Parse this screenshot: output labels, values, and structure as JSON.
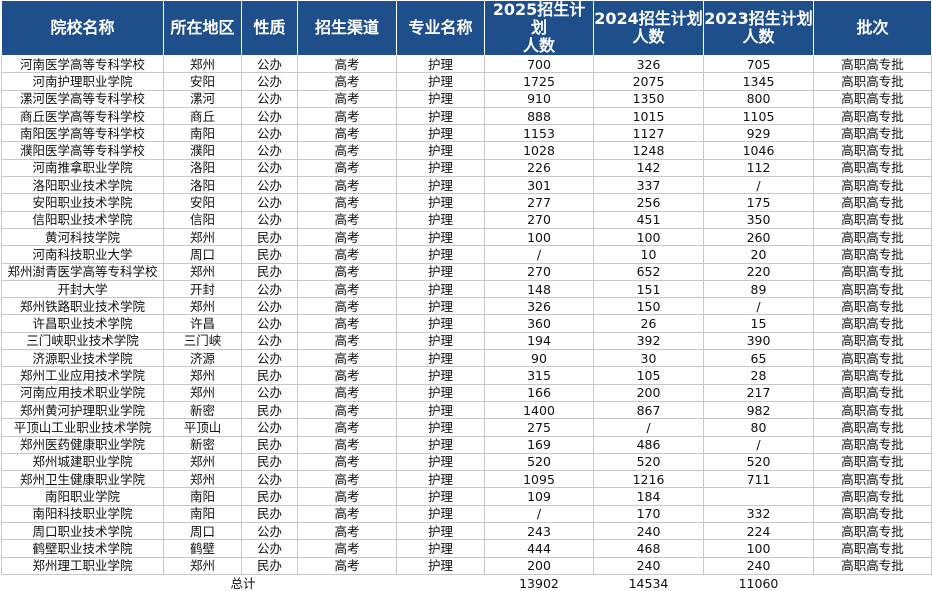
{
  "table": {
    "header": [
      "院校名称",
      "所在地区",
      "性质",
      "招生渠道",
      "专业名称",
      "2025招生计划\n人数",
      "2024招生计划\n人数",
      "2023招生计划\n人数",
      "批次"
    ],
    "rows": [
      [
        "河南医学高等专科学校",
        "郑州",
        "公办",
        "高考",
        "护理",
        700,
        326,
        705,
        "高职高专批"
      ],
      [
        "河南护理职业学院",
        "安阳",
        "公办",
        "高考",
        "护理",
        1725,
        2075,
        1345,
        "高职高专批"
      ],
      [
        "漯河医学高等专科学校",
        "漯河",
        "公办",
        "高考",
        "护理",
        910,
        1350,
        800,
        "高职高专批"
      ],
      [
        "商丘医学高等专科学校",
        "商丘",
        "公办",
        "高考",
        "护理",
        888,
        1015,
        1105,
        "高职高专批"
      ],
      [
        "南阳医学高等专科学校",
        "南阳",
        "公办",
        "高考",
        "护理",
        1153,
        1127,
        929,
        "高职高专批"
      ],
      [
        "濮阳医学高等专科学校",
        "濮阳",
        "公办",
        "高考",
        "护理",
        1028,
        1248,
        1046,
        "高职高专批"
      ],
      [
        "河南推拿职业学院",
        "洛阳",
        "公办",
        "高考",
        "护理",
        226,
        142,
        112,
        "高职高专批"
      ],
      [
        "洛阳职业技术学院",
        "洛阳",
        "公办",
        "高考",
        "护理",
        301,
        337,
        "/",
        "高职高专批"
      ],
      [
        "安阳职业技术学院",
        "安阳",
        "公办",
        "高考",
        "护理",
        277,
        256,
        175,
        "高职高专批"
      ],
      [
        "信阳职业技术学院",
        "信阳",
        "公办",
        "高考",
        "护理",
        270,
        451,
        350,
        "高职高专批"
      ],
      [
        "黄河科技学院",
        "郑州",
        "民办",
        "高考",
        "护理",
        100,
        100,
        260,
        "高职高专批"
      ],
      [
        "河南科技职业大学",
        "周口",
        "民办",
        "高考",
        "护理",
        "/",
        10,
        20,
        "高职高专批"
      ],
      [
        "郑州澍青医学高等专科学校",
        "郑州",
        "民办",
        "高考",
        "护理",
        270,
        652,
        220,
        "高职高专批"
      ],
      [
        "开封大学",
        "开封",
        "公办",
        "高考",
        "护理",
        148,
        151,
        89,
        "高职高专批"
      ],
      [
        "郑州铁路职业技术学院",
        "郑州",
        "公办",
        "高考",
        "护理",
        326,
        150,
        "/",
        "高职高专批"
      ],
      [
        "许昌职业技术学院",
        "许昌",
        "公办",
        "高考",
        "护理",
        360,
        26,
        15,
        "高职高专批"
      ],
      [
        "三门峡职业技术学院",
        "三门峡",
        "公办",
        "高考",
        "护理",
        194,
        392,
        390,
        "高职高专批"
      ],
      [
        "济源职业技术学院",
        "济源",
        "公办",
        "高考",
        "护理",
        90,
        30,
        65,
        "高职高专批"
      ],
      [
        "郑州工业应用技术学院",
        "郑州",
        "民办",
        "高考",
        "护理",
        315,
        105,
        28,
        "高职高专批"
      ],
      [
        "河南应用技术职业学院",
        "郑州",
        "公办",
        "高考",
        "护理",
        166,
        200,
        217,
        "高职高专批"
      ],
      [
        "郑州黄河护理职业学院",
        "新密",
        "民办",
        "高考",
        "护理",
        1400,
        867,
        982,
        "高职高专批"
      ],
      [
        "平顶山工业职业技术学院",
        "平顶山",
        "公办",
        "高考",
        "护理",
        275,
        "/",
        80,
        "高职高专批"
      ],
      [
        "郑州医药健康职业学院",
        "新密",
        "民办",
        "高考",
        "护理",
        169,
        486,
        "/",
        "高职高专批"
      ],
      [
        "郑州城建职业学院",
        "郑州",
        "民办",
        "高考",
        "护理",
        520,
        520,
        520,
        "高职高专批"
      ],
      [
        "郑州卫生健康职业学院",
        "郑州",
        "公办",
        "高考",
        "护理",
        1095,
        1216,
        711,
        "高职高专批"
      ],
      [
        "南阳职业学院",
        "南阳",
        "民办",
        "高考",
        "护理",
        109,
        184,
        null,
        "高职高专批"
      ],
      [
        "南阳科技职业学院",
        "南阳",
        "民办",
        "高考",
        "护理",
        "/",
        170,
        332,
        "高职高专批"
      ],
      [
        "周口职业技术学院",
        "周口",
        "公办",
        "高考",
        "护理",
        243,
        240,
        224,
        "高职高专批"
      ],
      [
        "鹤壁职业技术学院",
        "鹤壁",
        "公办",
        "高考",
        "护理",
        444,
        468,
        100,
        "高职高专批"
      ],
      [
        "郑州理工职业学院",
        "郑州",
        "民办",
        "高考",
        "护理",
        200,
        240,
        240,
        "高职高专批"
      ]
    ],
    "total": {
      "label": "总计",
      "values": [
        13902,
        14534,
        11060
      ]
    }
  }
}
